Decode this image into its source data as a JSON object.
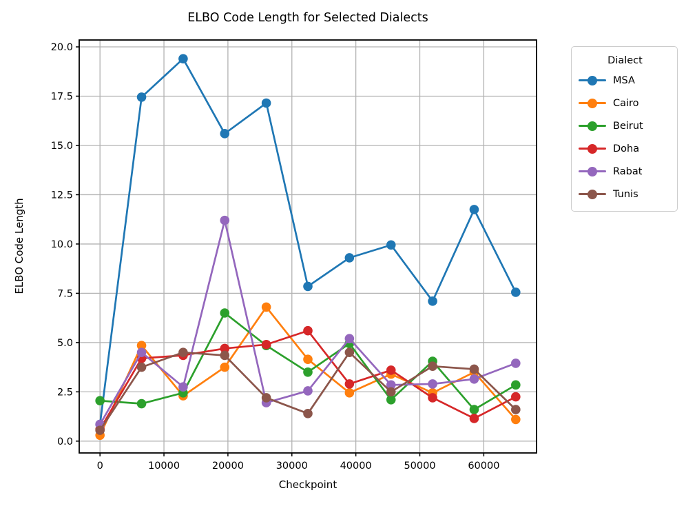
{
  "chart_data": {
    "type": "line",
    "title": "ELBO Code Length for Selected Dialects",
    "xlabel": "Checkpoint",
    "ylabel": "ELBO Code Length",
    "legend": {
      "title": "Dialect",
      "position": "outside-upper-right"
    },
    "grid": true,
    "xlim": [
      -3250,
      68250
    ],
    "ylim": [
      -0.6,
      20.35
    ],
    "xticks": [
      0,
      10000,
      20000,
      30000,
      40000,
      50000,
      60000
    ],
    "xtick_labels": [
      "0",
      "10000",
      "20000",
      "30000",
      "40000",
      "50000",
      "60000"
    ],
    "yticks": [
      0,
      2.5,
      5,
      7.5,
      10,
      12.5,
      15,
      17.5,
      20
    ],
    "ytick_labels": [
      "0.0",
      "2.5",
      "5.0",
      "7.5",
      "10.0",
      "12.5",
      "15.0",
      "17.5",
      "20.0"
    ],
    "x": [
      0,
      6500,
      13000,
      19500,
      26000,
      32500,
      39000,
      45500,
      52000,
      58500,
      65000
    ],
    "series": [
      {
        "name": "MSA",
        "color": "#1f77b4",
        "values": [
          0.85,
          17.45,
          19.4,
          15.6,
          17.15,
          7.85,
          9.3,
          9.95,
          7.1,
          11.75,
          7.55
        ]
      },
      {
        "name": "Cairo",
        "color": "#ff7f0e",
        "values": [
          0.3,
          4.85,
          2.3,
          3.75,
          6.8,
          4.15,
          2.45,
          3.4,
          2.45,
          3.5,
          1.1
        ]
      },
      {
        "name": "Beirut",
        "color": "#2ca02c",
        "values": [
          2.05,
          1.9,
          2.45,
          6.5,
          4.85,
          3.5,
          4.95,
          2.1,
          4.05,
          1.6,
          2.85
        ]
      },
      {
        "name": "Doha",
        "color": "#d62728",
        "values": [
          0.6,
          4.2,
          4.35,
          4.7,
          4.9,
          5.6,
          2.9,
          3.6,
          2.2,
          1.15,
          2.25
        ]
      },
      {
        "name": "Rabat",
        "color": "#9467bd",
        "values": [
          0.85,
          4.5,
          2.75,
          11.2,
          1.95,
          2.55,
          5.2,
          2.85,
          2.9,
          3.15,
          3.95
        ]
      },
      {
        "name": "Tunis",
        "color": "#8c564b",
        "values": [
          0.55,
          3.75,
          4.5,
          4.35,
          2.2,
          1.4,
          4.5,
          2.5,
          3.8,
          3.65,
          1.6
        ]
      }
    ],
    "colors": {
      "grid": "#b2b2b2",
      "spine": "#000000",
      "background": "#ffffff",
      "legend_border": "#cccccc",
      "text": "#000000"
    }
  }
}
